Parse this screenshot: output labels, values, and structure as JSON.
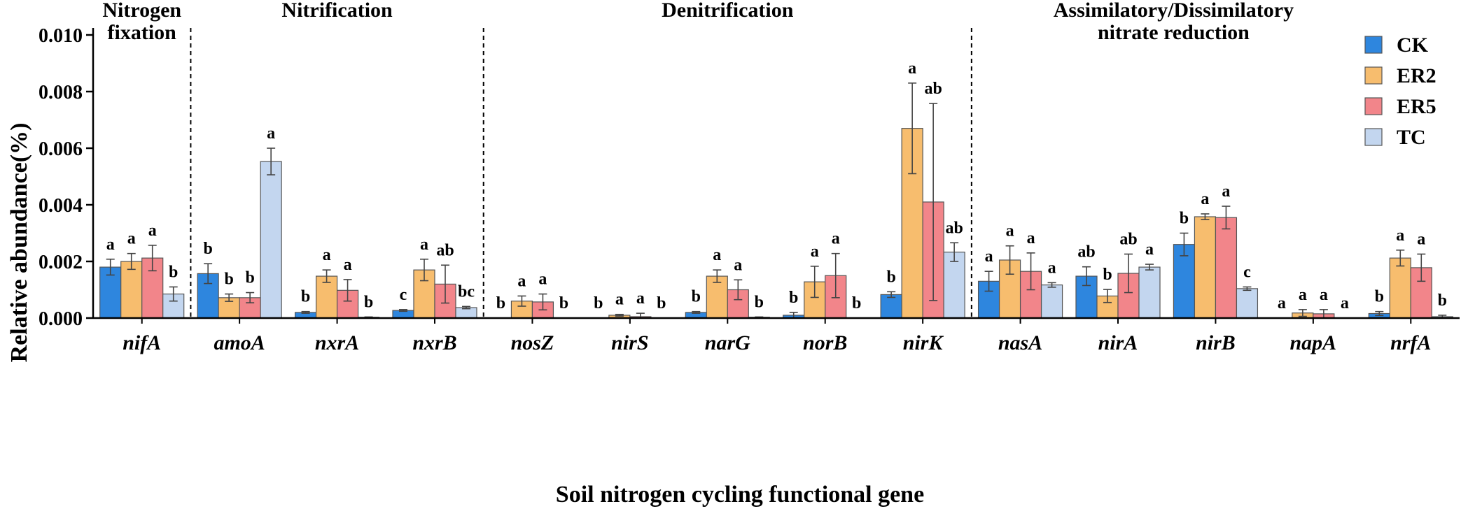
{
  "chart_data": {
    "type": "bar",
    "title": "",
    "xlabel": "Soil nitrogen cycling functional gene",
    "ylabel": "Relative abundance(%)",
    "ylim": [
      0,
      0.01
    ],
    "yticks": [
      "0.000",
      "0.002",
      "0.004",
      "0.006",
      "0.008",
      "0.010"
    ],
    "legend_position": "top-right",
    "categories": [
      "nifA",
      "amoA",
      "nxrA",
      "nxrB",
      "nosZ",
      "nirS",
      "narG",
      "norB",
      "nirK",
      "nasA",
      "nirA",
      "nirB",
      "napA",
      "nrfA"
    ],
    "series": [
      {
        "name": "CK",
        "color": "#2e86de",
        "values": [
          0.0018,
          0.00157,
          0.0002,
          0.00027,
          0.0,
          0.0,
          0.0002,
          0.0001,
          0.00083,
          0.0013,
          0.00148,
          0.0026,
          0.0,
          0.00016
        ],
        "errors": [
          0.00028,
          0.00035,
          3e-05,
          3e-05,
          0.0,
          0.0,
          3e-05,
          0.0001,
          0.0001,
          0.00035,
          0.00033,
          0.0004,
          0.0,
          7e-05
        ],
        "labels": [
          "a",
          "b",
          "b",
          "c",
          "b",
          "b",
          "b",
          "b",
          "b",
          "a",
          "ab",
          "b",
          "a",
          "b"
        ]
      },
      {
        "name": "ER2",
        "color": "#f7bd6e",
        "values": [
          0.002,
          0.00072,
          0.00148,
          0.0017,
          0.0006,
          0.0001,
          0.00148,
          0.00128,
          0.0067,
          0.00205,
          0.00078,
          0.00358,
          0.00018,
          0.00212
        ],
        "errors": [
          0.00028,
          0.00013,
          0.00022,
          0.00038,
          0.00018,
          3e-05,
          0.00022,
          0.00055,
          0.0016,
          0.0005,
          0.00023,
          0.0001,
          0.00012,
          0.00028
        ],
        "labels": [
          "a",
          "b",
          "a",
          "a",
          "a",
          "a",
          "a",
          "a",
          "a",
          "a",
          "b",
          "a",
          "a",
          "a"
        ]
      },
      {
        "name": "ER5",
        "color": "#f2858a",
        "values": [
          0.00212,
          0.00072,
          0.00098,
          0.0012,
          0.00057,
          5e-05,
          0.001,
          0.0015,
          0.0041,
          0.00165,
          0.00158,
          0.00355,
          0.00015,
          0.00178
        ],
        "errors": [
          0.00045,
          0.00018,
          0.00038,
          0.00067,
          0.00028,
          0.00012,
          0.00035,
          0.00078,
          0.00348,
          0.00065,
          0.00068,
          0.0004,
          0.00015,
          0.00048
        ],
        "labels": [
          "a",
          "b",
          "a",
          "ab",
          "a",
          "a",
          "a",
          "a",
          "ab",
          "a",
          "ab",
          "a",
          "a",
          "a"
        ]
      },
      {
        "name": "TC",
        "color": "#c3d6ef",
        "values": [
          0.00085,
          0.00553,
          3e-05,
          0.00037,
          0.0,
          0.0,
          3e-05,
          0.0,
          0.00233,
          0.00117,
          0.0018,
          0.00104,
          0.0,
          5e-05
        ],
        "errors": [
          0.00025,
          0.00047,
          1e-05,
          4e-05,
          0.0,
          0.0,
          1e-05,
          0.0,
          0.00033,
          8e-05,
          0.0001,
          6e-05,
          0.0,
          5e-05
        ],
        "labels": [
          "b",
          "a",
          "b",
          "bc",
          "b",
          "b",
          "b",
          "b",
          "ab",
          "a",
          "a",
          "c",
          "a",
          "b"
        ]
      }
    ],
    "sections": [
      {
        "title_lines": [
          "Nitrogen",
          "fixation"
        ],
        "from": 0,
        "to": 0
      },
      {
        "title_lines": [
          "Nitrification"
        ],
        "from": 1,
        "to": 3
      },
      {
        "title_lines": [
          "Denitrification"
        ],
        "from": 4,
        "to": 8
      },
      {
        "title_lines": [
          "Assimilatory/Dissimilatory",
          " nitrate reduction"
        ],
        "from": 9,
        "to": 13
      }
    ]
  }
}
